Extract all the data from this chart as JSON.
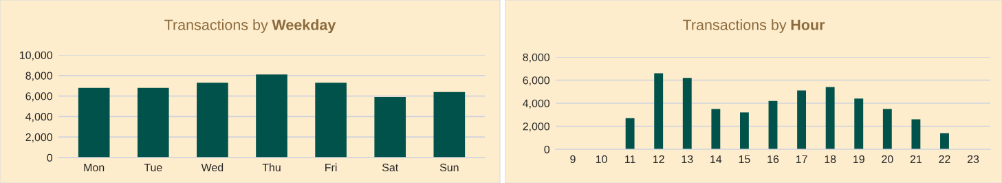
{
  "chart_data": [
    {
      "type": "bar",
      "title": "Transactions by Weekday",
      "categories": [
        "Mon",
        "Tue",
        "Wed",
        "Thu",
        "Fri",
        "Sat",
        "Sun"
      ],
      "values": [
        6800,
        6800,
        7300,
        8100,
        7300,
        5900,
        6400
      ],
      "color": "#00524a",
      "ylim": [
        0,
        10000
      ],
      "yticks": [
        0,
        {
          "value": 2000,
          "label": "2,000"
        },
        {
          "value": 4000,
          "label": "4,000"
        },
        {
          "value": 6000,
          "label": "6,000"
        },
        {
          "value": 8000,
          "label": "8,000"
        },
        {
          "value": 10000,
          "label": "10,000"
        }
      ],
      "grid": "y"
    },
    {
      "type": "bar",
      "title": "Transactions by Hour",
      "categories": [
        "9",
        "10",
        "11",
        "12",
        "13",
        "14",
        "15",
        "16",
        "17",
        "18",
        "19",
        "20",
        "21",
        "22",
        "23"
      ],
      "values": [
        0,
        0,
        2700,
        6600,
        6200,
        3500,
        3200,
        4200,
        5100,
        5400,
        4400,
        3500,
        2600,
        1400,
        0
      ],
      "color": "#00524a",
      "ylim": [
        0,
        8000
      ],
      "yticks": [
        0,
        {
          "value": 2000,
          "label": "2,000"
        },
        {
          "value": 4000,
          "label": "4,000"
        },
        {
          "value": 6000,
          "label": "6,000"
        },
        {
          "value": 8000,
          "label": "8,000"
        }
      ],
      "grid": "y"
    }
  ]
}
